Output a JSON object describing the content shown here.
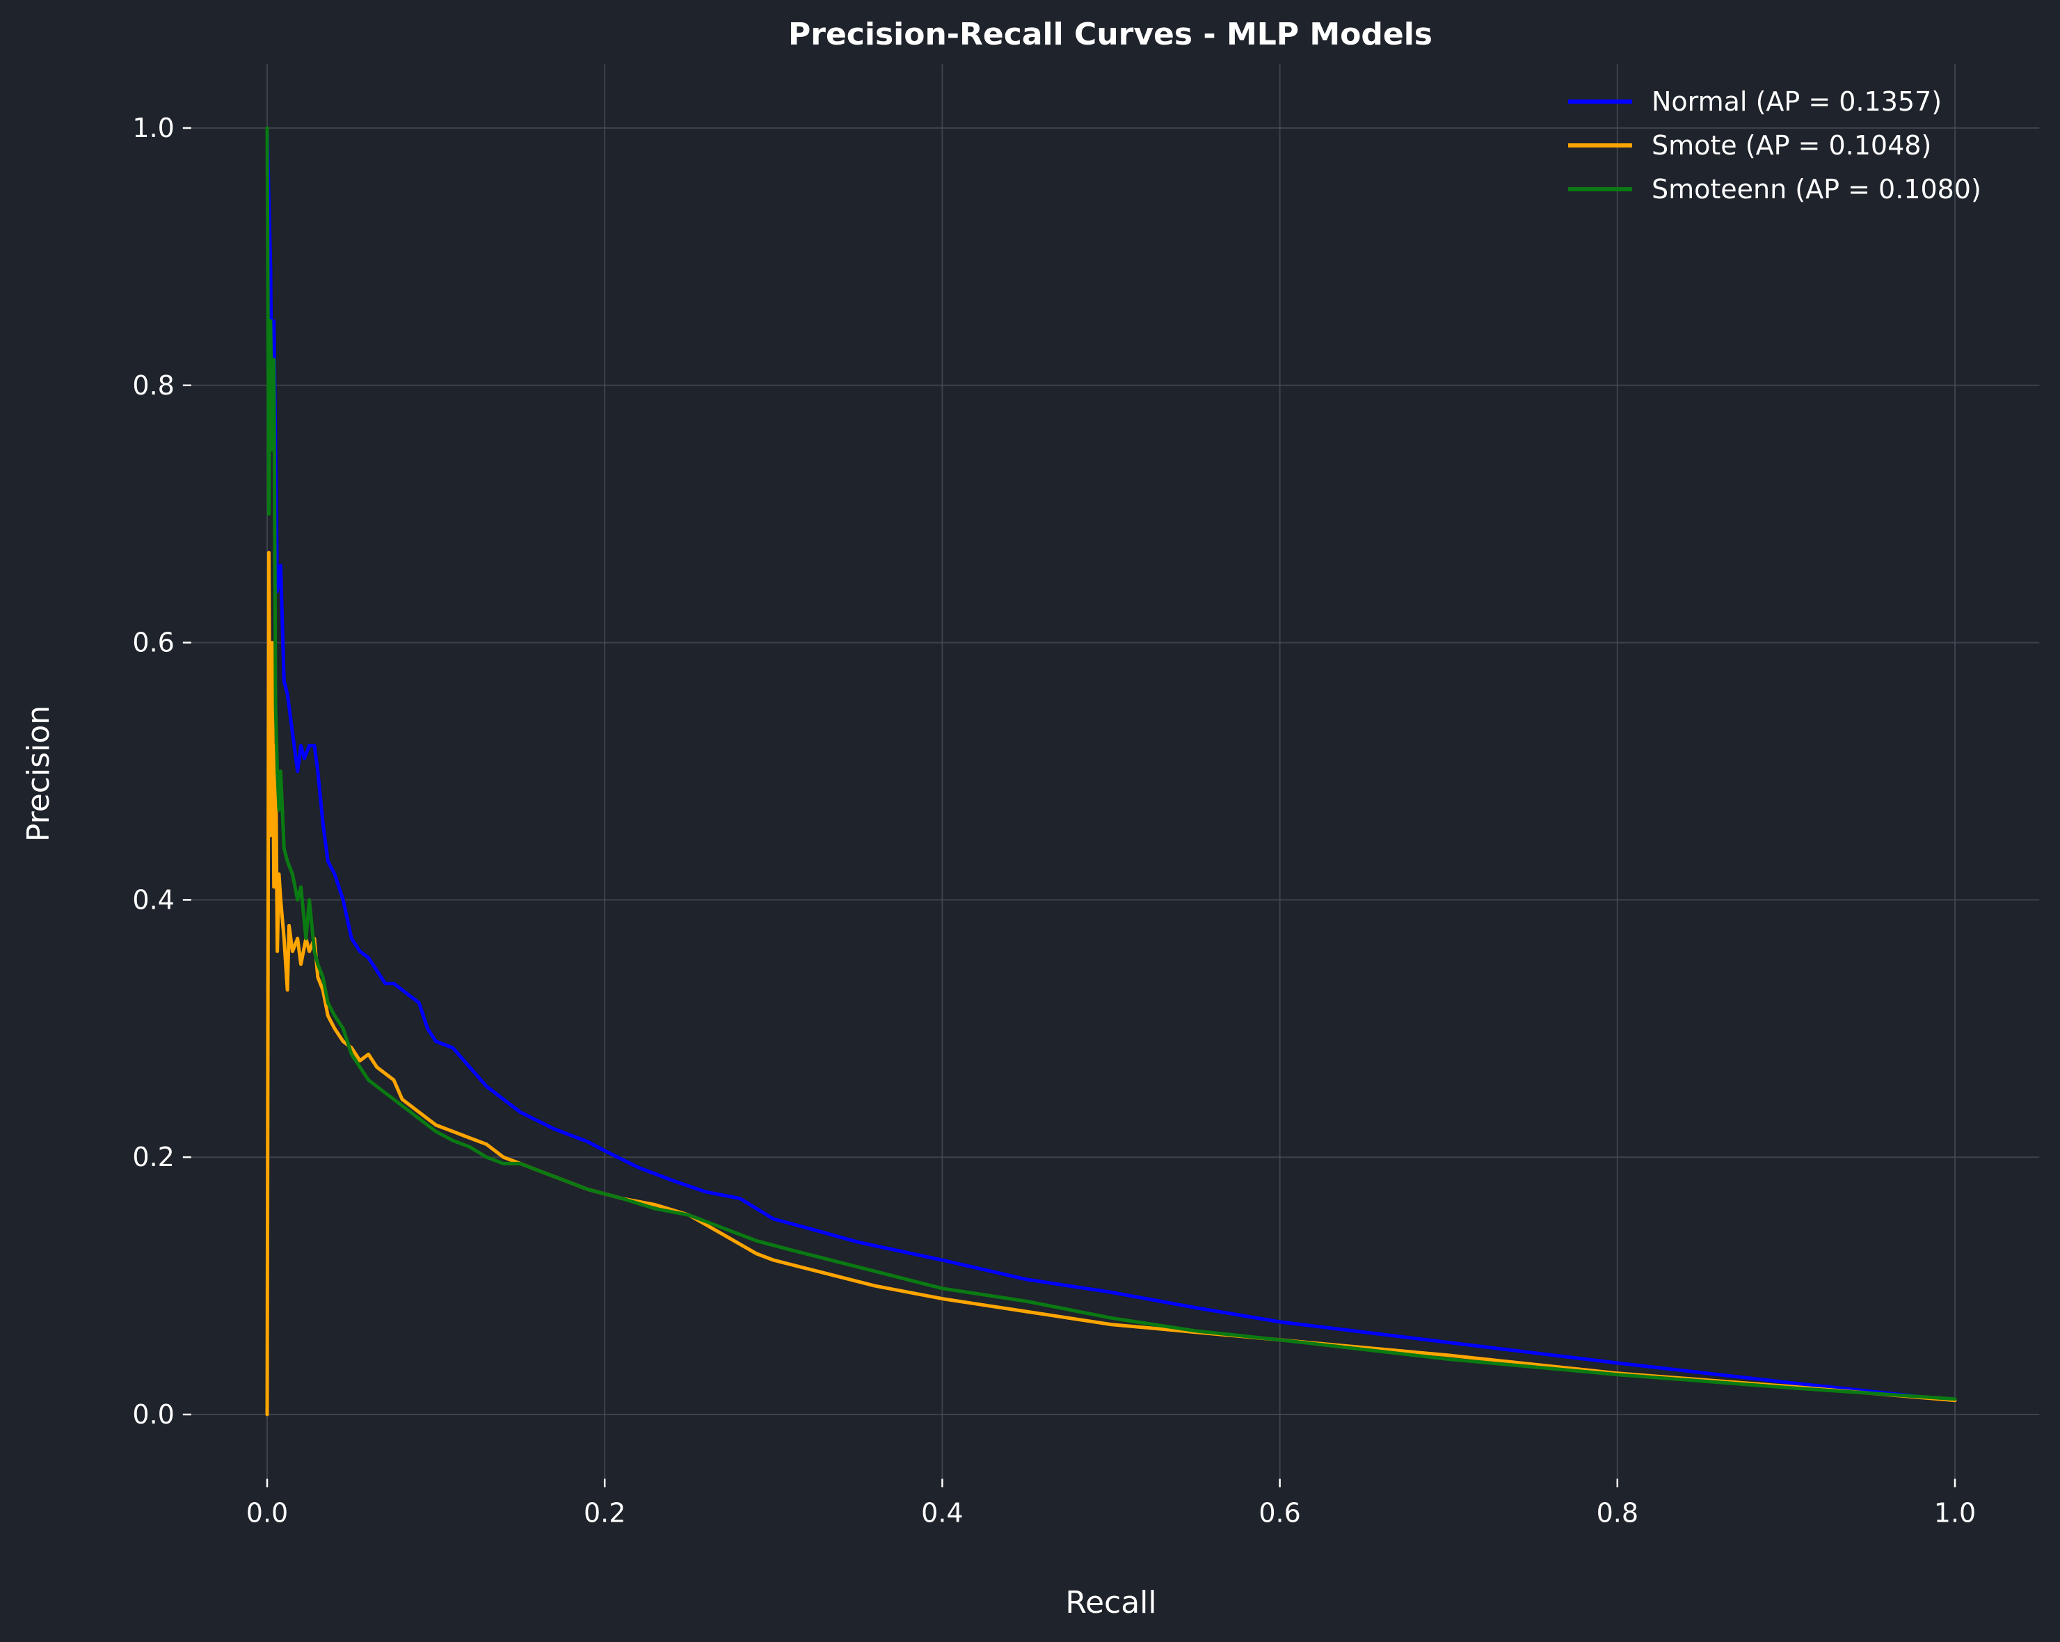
{
  "chart_data": {
    "type": "line",
    "title": "Precision-Recall Curves - MLP Models",
    "xlabel": "Recall",
    "ylabel": "Precision",
    "xlim": [
      -0.045,
      1.05
    ],
    "ylim": [
      -0.05,
      1.05
    ],
    "xticks": [
      0.0,
      0.2,
      0.4,
      0.6,
      0.8,
      1.0
    ],
    "xtick_labels": [
      "0.0",
      "0.2",
      "0.4",
      "0.6",
      "0.8",
      "1.0"
    ],
    "yticks": [
      0.0,
      0.2,
      0.4,
      0.6,
      0.8,
      1.0
    ],
    "ytick_labels": [
      "0.0",
      "0.2",
      "0.4",
      "0.6",
      "0.8",
      "1.0"
    ],
    "grid": true,
    "legend_position": "top-right",
    "series": [
      {
        "name": "Normal (AP = 0.1357)",
        "color": "#0000ff",
        "x": [
          0.0,
          0.002,
          0.003,
          0.004,
          0.006,
          0.008,
          0.01,
          0.012,
          0.015,
          0.018,
          0.02,
          0.022,
          0.025,
          0.028,
          0.03,
          0.033,
          0.036,
          0.04,
          0.045,
          0.05,
          0.055,
          0.06,
          0.065,
          0.07,
          0.075,
          0.08,
          0.09,
          0.095,
          0.1,
          0.11,
          0.12,
          0.13,
          0.14,
          0.15,
          0.17,
          0.19,
          0.2,
          0.22,
          0.24,
          0.26,
          0.28,
          0.3,
          0.32,
          0.35,
          0.4,
          0.45,
          0.5,
          0.55,
          0.6,
          0.7,
          0.8,
          0.9,
          1.0
        ],
        "y": [
          1.0,
          0.89,
          0.75,
          0.85,
          0.64,
          0.66,
          0.57,
          0.56,
          0.53,
          0.5,
          0.52,
          0.51,
          0.52,
          0.52,
          0.5,
          0.46,
          0.43,
          0.42,
          0.4,
          0.37,
          0.36,
          0.355,
          0.345,
          0.335,
          0.335,
          0.33,
          0.32,
          0.3,
          0.29,
          0.285,
          0.27,
          0.255,
          0.245,
          0.235,
          0.222,
          0.212,
          0.205,
          0.192,
          0.182,
          0.173,
          0.168,
          0.152,
          0.145,
          0.134,
          0.12,
          0.105,
          0.095,
          0.083,
          0.072,
          0.056,
          0.04,
          0.025,
          0.011
        ]
      },
      {
        "name": "Smote (AP = 0.1048)",
        "color": "#ffa500",
        "x": [
          0.0,
          0.001,
          0.002,
          0.003,
          0.004,
          0.005,
          0.006,
          0.007,
          0.008,
          0.01,
          0.012,
          0.013,
          0.015,
          0.018,
          0.02,
          0.023,
          0.025,
          0.028,
          0.03,
          0.033,
          0.036,
          0.04,
          0.045,
          0.05,
          0.055,
          0.06,
          0.065,
          0.07,
          0.075,
          0.08,
          0.085,
          0.09,
          0.1,
          0.11,
          0.12,
          0.13,
          0.14,
          0.15,
          0.17,
          0.19,
          0.21,
          0.23,
          0.25,
          0.27,
          0.29,
          0.3,
          0.33,
          0.36,
          0.4,
          0.45,
          0.5,
          0.55,
          0.6,
          0.7,
          0.8,
          0.9,
          1.0
        ],
        "y": [
          0.0,
          0.67,
          0.45,
          0.6,
          0.41,
          0.52,
          0.36,
          0.42,
          0.4,
          0.37,
          0.33,
          0.38,
          0.36,
          0.37,
          0.35,
          0.37,
          0.36,
          0.37,
          0.34,
          0.33,
          0.31,
          0.3,
          0.29,
          0.285,
          0.275,
          0.28,
          0.27,
          0.265,
          0.26,
          0.245,
          0.24,
          0.235,
          0.225,
          0.22,
          0.215,
          0.21,
          0.2,
          0.195,
          0.185,
          0.175,
          0.168,
          0.163,
          0.155,
          0.14,
          0.125,
          0.12,
          0.11,
          0.1,
          0.09,
          0.08,
          0.07,
          0.064,
          0.058,
          0.046,
          0.032,
          0.022,
          0.011
        ]
      },
      {
        "name": "Smoteenn (AP = 0.1080)",
        "color": "#0a7a12",
        "x": [
          0.0,
          0.001,
          0.002,
          0.003,
          0.004,
          0.005,
          0.006,
          0.007,
          0.008,
          0.01,
          0.012,
          0.015,
          0.018,
          0.02,
          0.023,
          0.025,
          0.028,
          0.03,
          0.033,
          0.036,
          0.04,
          0.045,
          0.05,
          0.055,
          0.06,
          0.07,
          0.08,
          0.09,
          0.1,
          0.11,
          0.12,
          0.13,
          0.14,
          0.15,
          0.17,
          0.19,
          0.21,
          0.23,
          0.25,
          0.27,
          0.29,
          0.31,
          0.34,
          0.37,
          0.4,
          0.45,
          0.5,
          0.55,
          0.6,
          0.7,
          0.8,
          0.9,
          1.0
        ],
        "y": [
          1.0,
          0.7,
          0.85,
          0.75,
          0.82,
          0.55,
          0.5,
          0.47,
          0.5,
          0.44,
          0.43,
          0.42,
          0.4,
          0.41,
          0.37,
          0.4,
          0.36,
          0.35,
          0.34,
          0.32,
          0.31,
          0.3,
          0.28,
          0.27,
          0.26,
          0.25,
          0.24,
          0.23,
          0.22,
          0.213,
          0.208,
          0.2,
          0.195,
          0.195,
          0.185,
          0.175,
          0.168,
          0.16,
          0.155,
          0.145,
          0.135,
          0.128,
          0.118,
          0.108,
          0.098,
          0.088,
          0.075,
          0.065,
          0.058,
          0.043,
          0.031,
          0.021,
          0.012
        ]
      }
    ]
  }
}
